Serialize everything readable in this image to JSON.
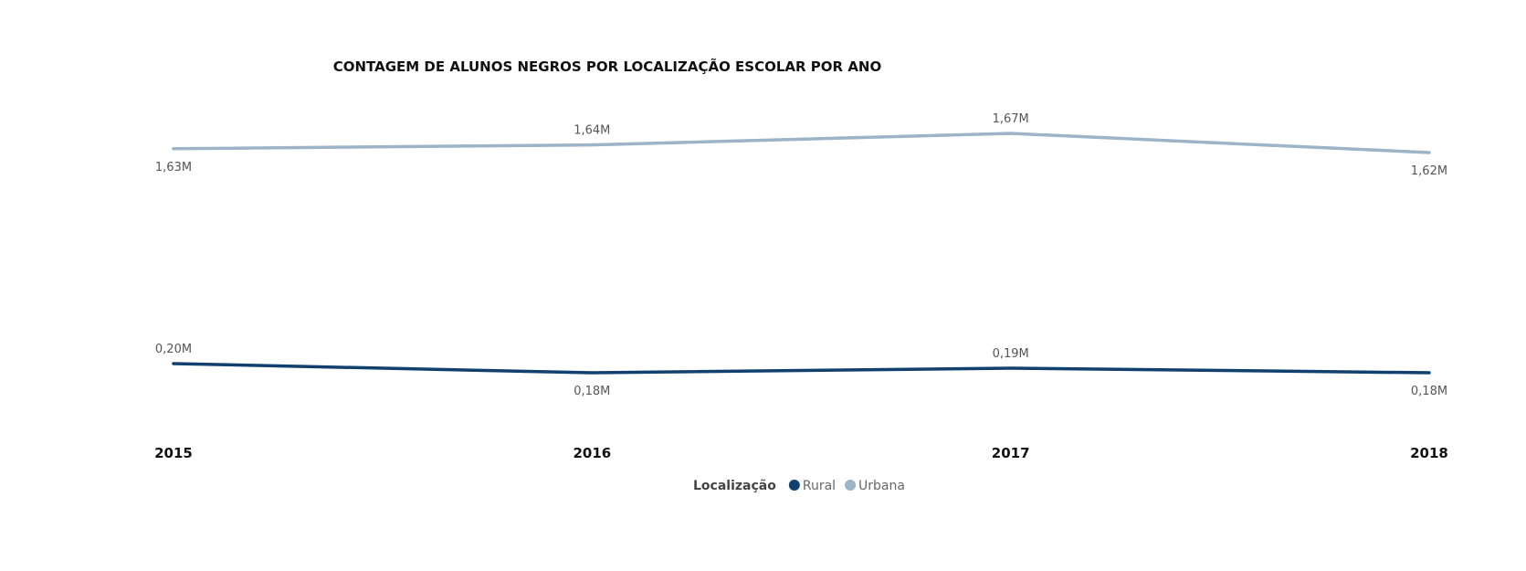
{
  "chart_data": {
    "type": "line",
    "title": "CONTAGEM DE ALUNOS NEGROS POR LOCALIZAÇÃO ESCOLAR POR ANO",
    "x": [
      "2015",
      "2016",
      "2017",
      "2018"
    ],
    "series": [
      {
        "name": "Rural",
        "color": "#12406e",
        "values": [
          0.2,
          0.18,
          0.19,
          0.18
        ],
        "labels": [
          "0,20M",
          "0,18M",
          "0,19M",
          "0,18M"
        ],
        "label_positions": [
          "above",
          "below",
          "above",
          "below"
        ]
      },
      {
        "name": "Urbana",
        "color": "#9db3c8",
        "values": [
          1.63,
          1.64,
          1.67,
          1.62
        ],
        "labels": [
          "1,63M",
          "1,64M",
          "1,67M",
          "1,62M"
        ],
        "label_positions": [
          "below",
          "above",
          "above",
          "below"
        ]
      }
    ],
    "legend": {
      "title": "Localização",
      "placement": "bottom-center"
    },
    "grid": false
  }
}
